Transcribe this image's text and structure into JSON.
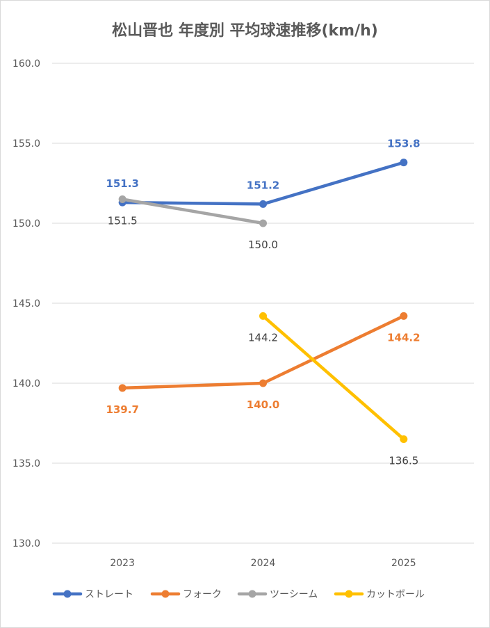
{
  "chart_data": {
    "type": "line",
    "title": "松山晋也 年度別 平均球速推移(km/h)",
    "xlabel": "",
    "ylabel": "",
    "categories": [
      "2023",
      "2024",
      "2025"
    ],
    "ylim": [
      130,
      160
    ],
    "y_ticks": [
      "130.0",
      "135.0",
      "140.0",
      "145.0",
      "150.0",
      "155.0",
      "160.0"
    ],
    "grid": true,
    "legend_position": "bottom",
    "series": [
      {
        "name": "ストレート",
        "color": "#4472C4",
        "values": [
          151.3,
          151.2,
          153.8
        ],
        "labels": [
          "151.3",
          "151.2",
          "153.8"
        ],
        "label_pos": [
          "above",
          "above",
          "above"
        ],
        "label_bold": true
      },
      {
        "name": "フォーク",
        "color": "#ED7D31",
        "values": [
          139.7,
          140.0,
          144.2
        ],
        "labels": [
          "139.7",
          "140.0",
          "144.2"
        ],
        "label_pos": [
          "below",
          "below",
          "below"
        ],
        "label_bold": true
      },
      {
        "name": "ツーシーム",
        "color": "#A5A5A5",
        "values": [
          151.5,
          150.0,
          null
        ],
        "labels": [
          "151.5",
          "150.0",
          null
        ],
        "label_pos": [
          "below",
          "below",
          null
        ],
        "label_bold": false
      },
      {
        "name": "カットボール",
        "color": "#FFC000",
        "values": [
          null,
          144.2,
          136.5
        ],
        "labels": [
          null,
          "144.2",
          "136.5"
        ],
        "label_pos": [
          null,
          "below",
          "below"
        ],
        "label_bold": false
      }
    ]
  }
}
